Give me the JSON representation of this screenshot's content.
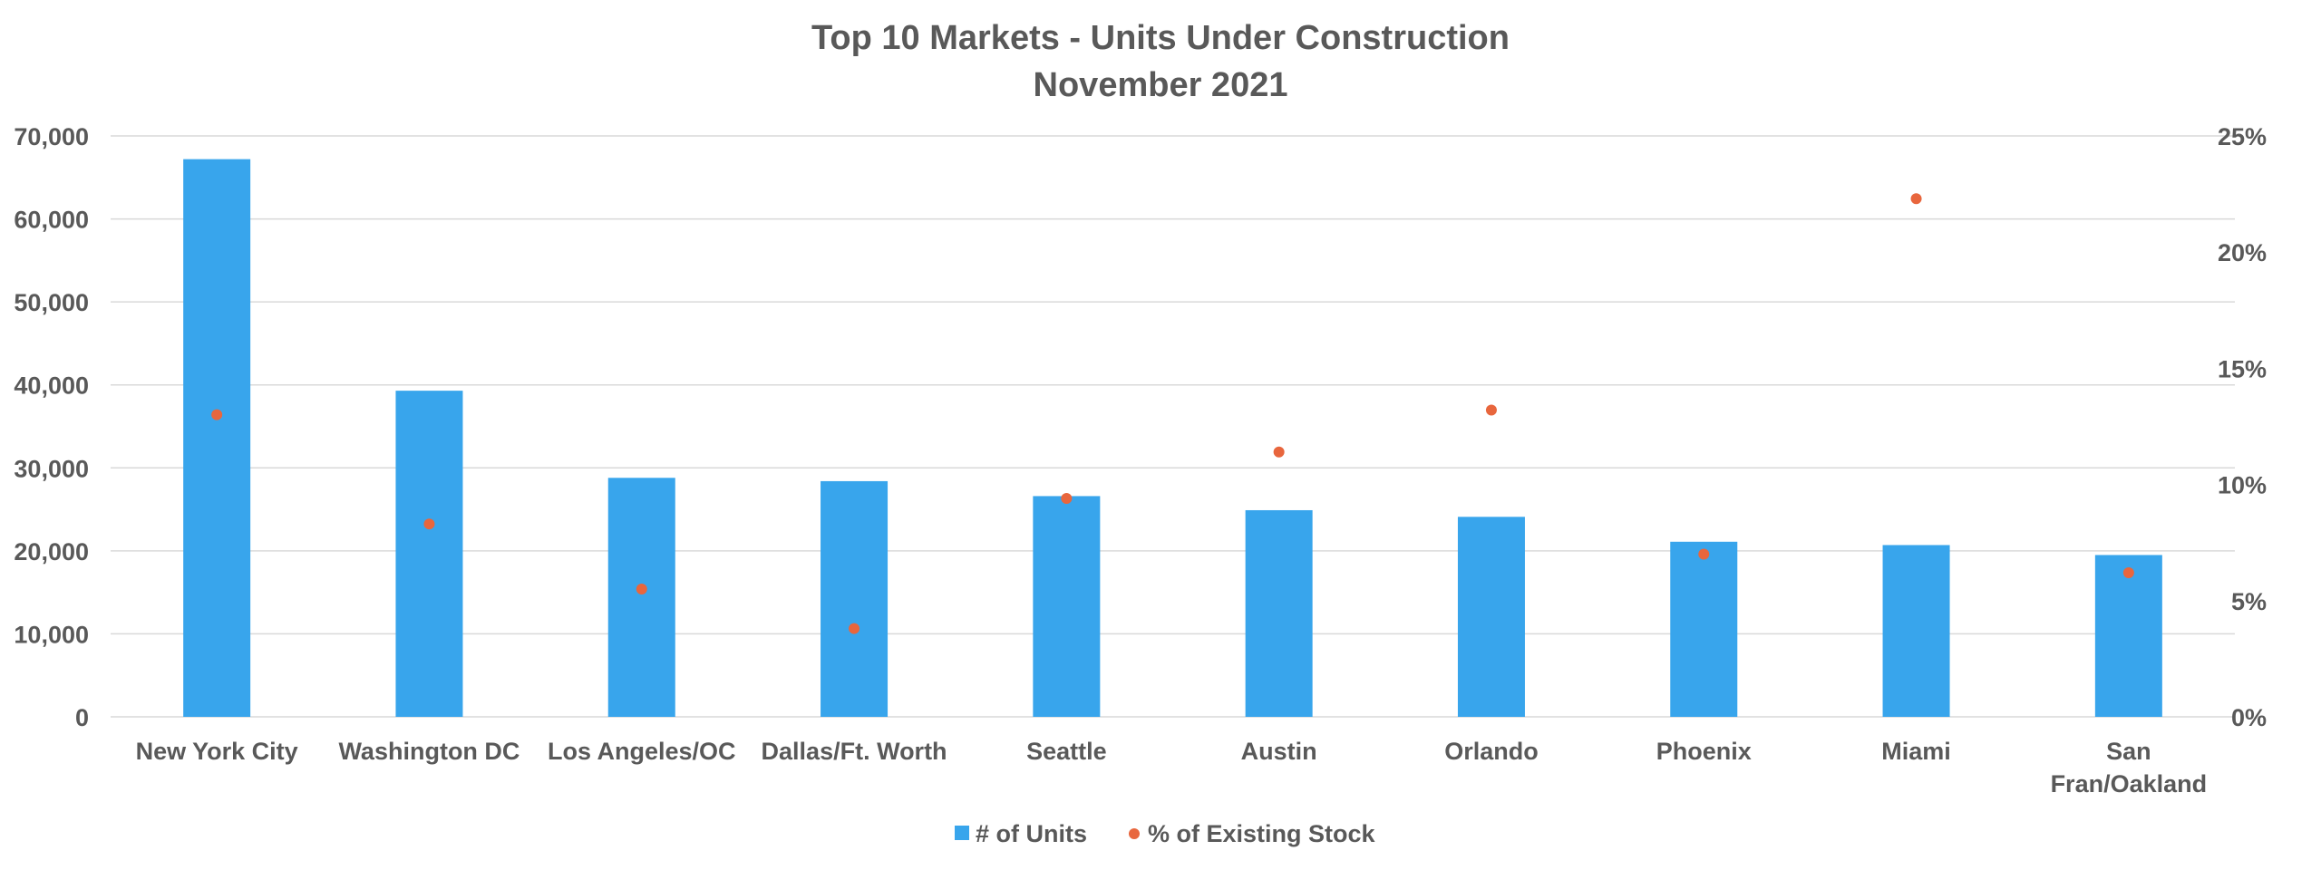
{
  "chart_data": {
    "type": "bar",
    "title": "Top 10 Markets - Units Under Construction",
    "subtitle": "November 2021",
    "categories": [
      [
        "New York City"
      ],
      [
        "Washington DC"
      ],
      [
        "Los Angeles/OC"
      ],
      [
        "Dallas/Ft. Worth"
      ],
      [
        "Seattle"
      ],
      [
        "Austin"
      ],
      [
        "Orlando"
      ],
      [
        "Phoenix"
      ],
      [
        "Miami"
      ],
      [
        "San",
        "Fran/Oakland"
      ]
    ],
    "series": [
      {
        "name": "# of Units",
        "type": "bar",
        "axis": "left",
        "color": "#38a5ec",
        "values": [
          67200,
          39300,
          28800,
          28400,
          26600,
          24900,
          24100,
          21100,
          20700,
          19500
        ]
      },
      {
        "name": "% of Existing Stock",
        "type": "scatter",
        "axis": "right",
        "color": "#e8663d",
        "values": [
          13.0,
          8.3,
          5.5,
          3.8,
          9.4,
          11.4,
          13.2,
          7.0,
          22.3,
          6.2
        ]
      }
    ],
    "y_left": {
      "min": 0,
      "max": 70000,
      "ticks": [
        0,
        10000,
        20000,
        30000,
        40000,
        50000,
        60000,
        70000
      ],
      "tick_labels": [
        "0",
        "10,000",
        "20,000",
        "30,000",
        "40,000",
        "50,000",
        "60,000",
        "70,000"
      ]
    },
    "y_right": {
      "min": 0,
      "max": 25,
      "ticks": [
        0,
        5,
        10,
        15,
        20,
        25
      ],
      "tick_labels": [
        "0%",
        "5%",
        "10%",
        "15%",
        "20%",
        "25%"
      ]
    },
    "grid": true,
    "legend_position": "bottom"
  }
}
